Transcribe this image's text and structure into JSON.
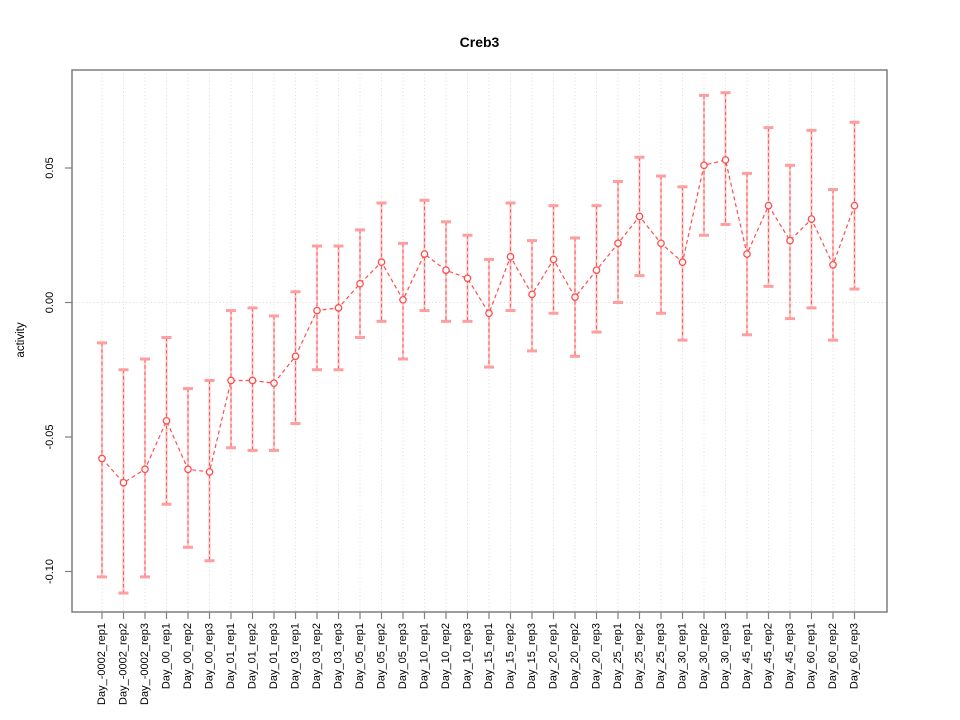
{
  "chart_data": {
    "type": "line",
    "title": "Creb3",
    "xlabel": "",
    "ylabel": "activity",
    "ylim": [
      -0.115,
      0.0865
    ],
    "grid": "dotted vertical line at every category; dotted horizontal line at y=0",
    "legend_position": "none",
    "series_color": "#ff4d4d",
    "error_bar_color": "#ff9e9e",
    "border_color": "#7f7f7f",
    "gridline_color": "#d8d8d8",
    "y_ticks": [
      0.05,
      0.0,
      -0.05,
      -0.1
    ],
    "y_tick_labels": [
      "0.05",
      "0.00",
      "-0.05",
      "-0.10"
    ],
    "categories": [
      "Day_-0002_rep1",
      "Day_-0002_rep2",
      "Day_-0002_rep3",
      "Day_00_rep1",
      "Day_00_rep2",
      "Day_00_rep3",
      "Day_01_rep1",
      "Day_01_rep2",
      "Day_01_rep3",
      "Day_03_rep1",
      "Day_03_rep2",
      "Day_03_rep3",
      "Day_05_rep1",
      "Day_05_rep2",
      "Day_05_rep3",
      "Day_10_rep1",
      "Day_10_rep2",
      "Day_10_rep3",
      "Day_15_rep1",
      "Day_15_rep2",
      "Day_15_rep3",
      "Day_20_rep1",
      "Day_20_rep2",
      "Day_20_rep3",
      "Day_25_rep1",
      "Day_25_rep2",
      "Day_25_rep3",
      "Day_30_rep1",
      "Day_30_rep2",
      "Day_30_rep3",
      "Day_45_rep1",
      "Day_45_rep2",
      "Day_45_rep3",
      "Day_60_rep1",
      "Day_60_rep2",
      "Day_60_rep3"
    ],
    "series": [
      {
        "name": "activity",
        "values": [
          -0.058,
          -0.067,
          -0.062,
          -0.044,
          -0.062,
          -0.063,
          -0.029,
          -0.029,
          -0.03,
          -0.02,
          -0.003,
          -0.002,
          0.007,
          0.015,
          0.001,
          0.018,
          0.012,
          0.009,
          -0.004,
          0.017,
          0.003,
          0.016,
          0.002,
          0.012,
          0.022,
          0.032,
          0.022,
          0.015,
          0.051,
          0.053,
          0.018,
          0.036,
          0.023,
          0.031,
          0.014,
          0.036
        ],
        "error_low": [
          -0.102,
          -0.108,
          -0.102,
          -0.075,
          -0.091,
          -0.096,
          -0.054,
          -0.055,
          -0.055,
          -0.045,
          -0.025,
          -0.025,
          -0.013,
          -0.007,
          -0.021,
          -0.003,
          -0.007,
          -0.007,
          -0.024,
          -0.003,
          -0.018,
          -0.004,
          -0.02,
          -0.011,
          0.0,
          0.01,
          -0.004,
          -0.014,
          0.025,
          0.029,
          -0.012,
          0.006,
          -0.006,
          -0.002,
          -0.014,
          0.005
        ],
        "error_high": [
          -0.015,
          -0.025,
          -0.021,
          -0.013,
          -0.032,
          -0.029,
          -0.003,
          -0.002,
          -0.005,
          0.004,
          0.021,
          0.021,
          0.027,
          0.037,
          0.022,
          0.038,
          0.03,
          0.025,
          0.016,
          0.037,
          0.023,
          0.036,
          0.024,
          0.036,
          0.045,
          0.054,
          0.047,
          0.043,
          0.077,
          0.078,
          0.048,
          0.065,
          0.051,
          0.064,
          0.042,
          0.067
        ]
      }
    ]
  }
}
